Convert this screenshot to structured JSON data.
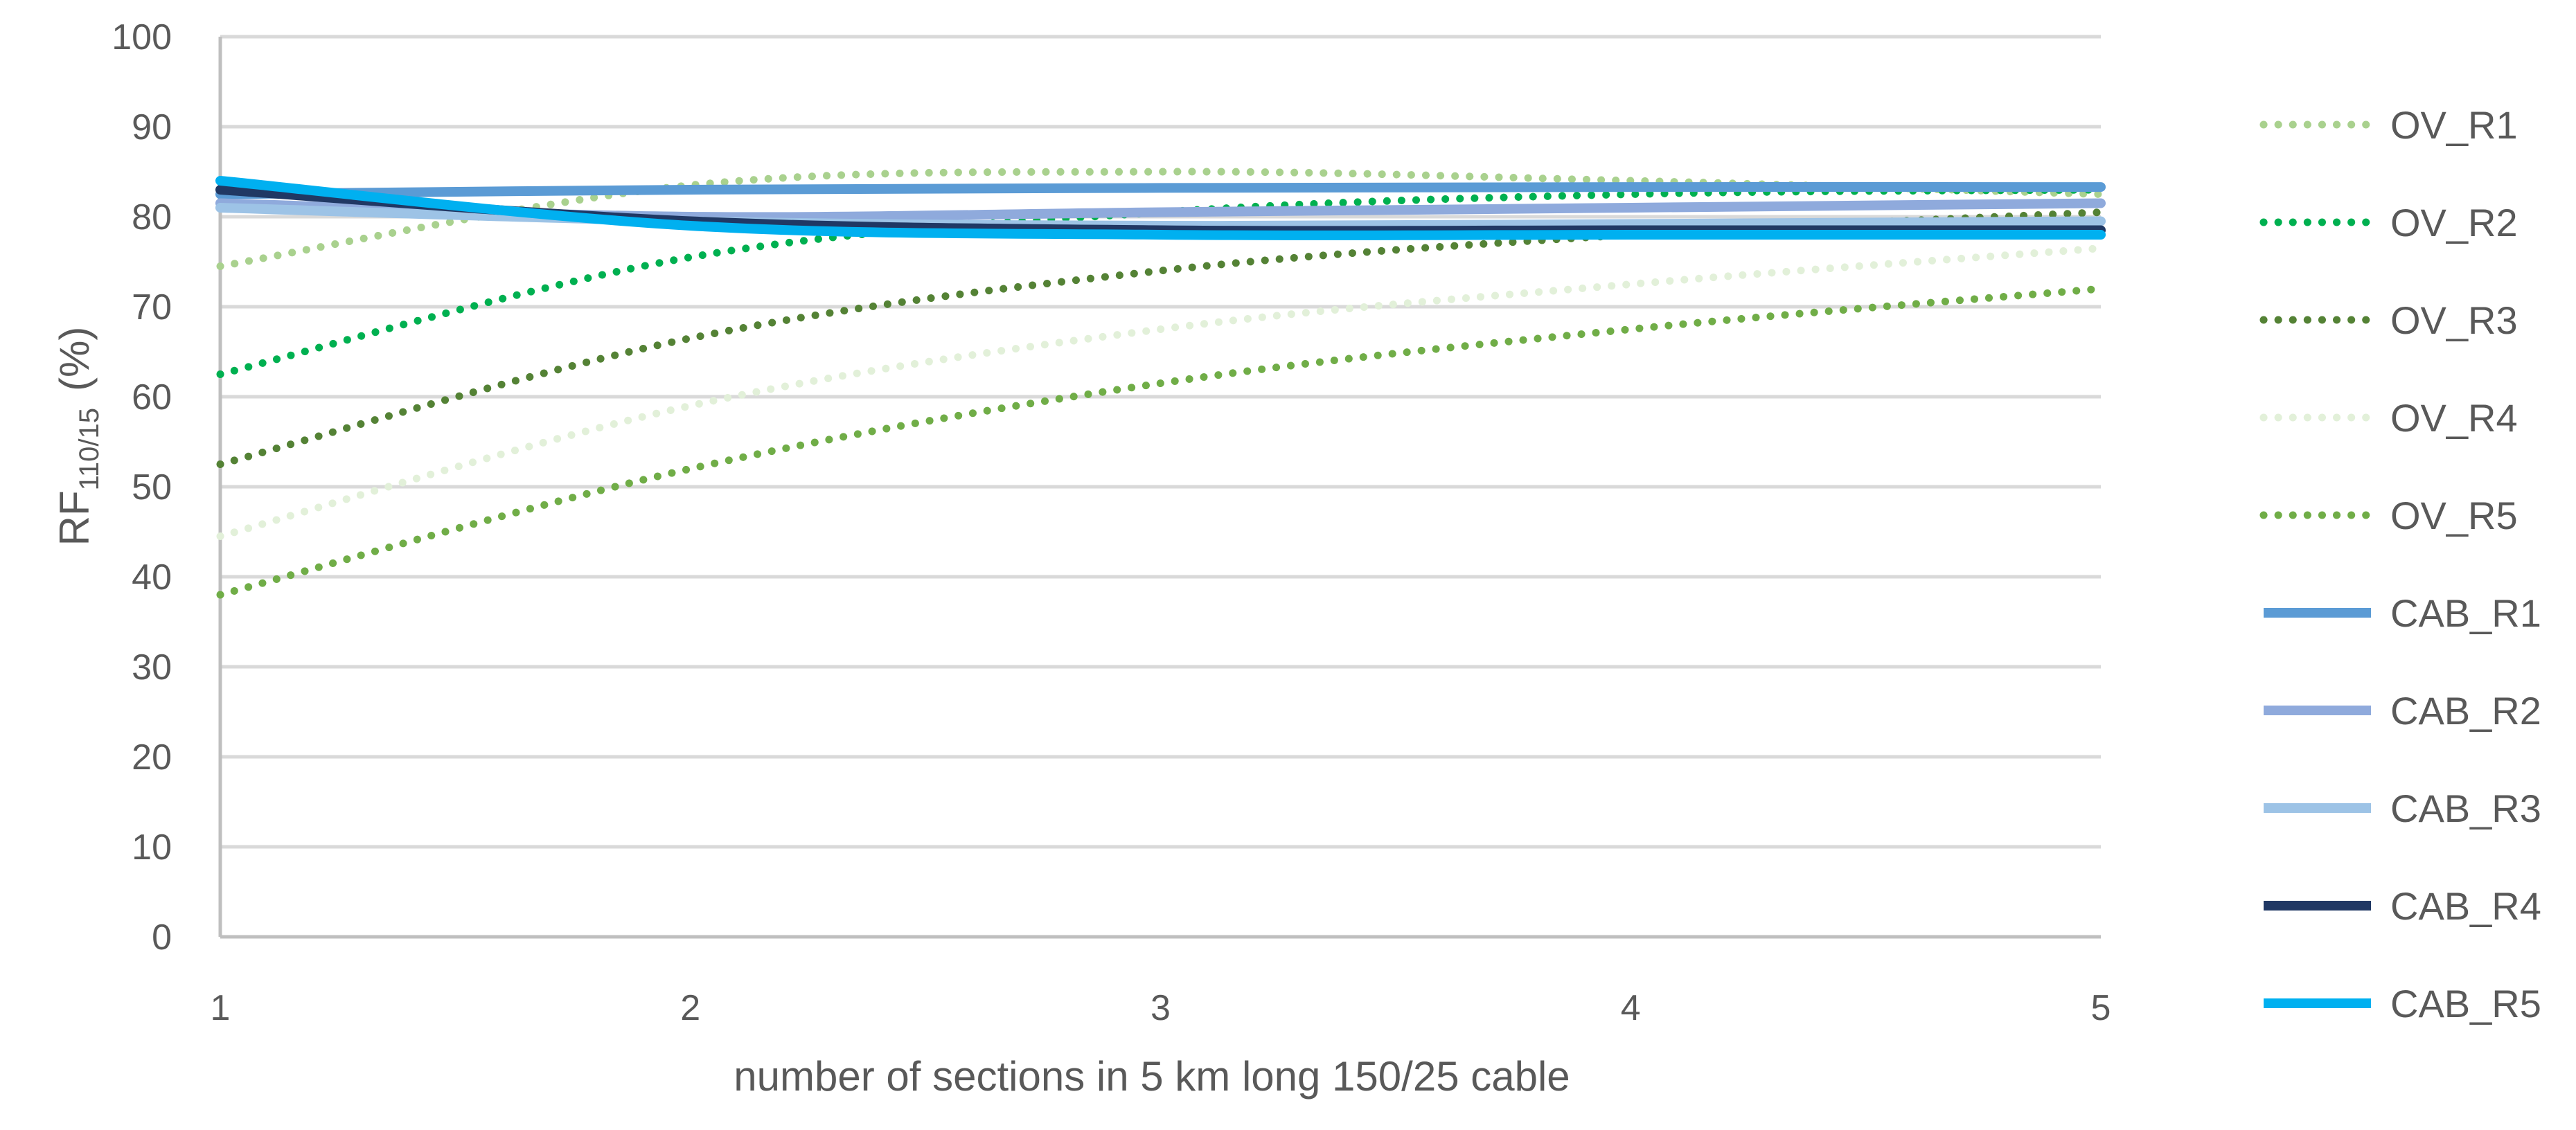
{
  "chart_data": {
    "type": "line",
    "title": "",
    "xlabel": "number of sections in 5 km long 150/25 cable",
    "ylabel": {
      "main": "RF",
      "subscript": "110/15",
      "unit": "(%)"
    },
    "x": [
      1,
      2,
      3,
      4,
      5
    ],
    "xlim": [
      1,
      5
    ],
    "ylim": [
      0,
      100
    ],
    "yticks": [
      0,
      10,
      20,
      30,
      40,
      50,
      60,
      70,
      80,
      90,
      100
    ],
    "xticks": [
      1,
      2,
      3,
      4,
      5
    ],
    "grid": true,
    "legend_position": "right",
    "series": [
      {
        "name": "OV_R1",
        "style": "dotted",
        "color": "#a9d18e",
        "values": [
          74.5,
          83.5,
          85.0,
          84.0,
          82.5
        ]
      },
      {
        "name": "OV_R2",
        "style": "dotted",
        "color": "#00b050",
        "values": [
          62.5,
          75.5,
          80.5,
          82.5,
          83.0
        ]
      },
      {
        "name": "OV_R3",
        "style": "dotted",
        "color": "#548235",
        "values": [
          52.5,
          66.5,
          74.0,
          78.0,
          80.5
        ]
      },
      {
        "name": "OV_R4",
        "style": "dotted",
        "color": "#e2f0d9",
        "values": [
          44.5,
          59.0,
          67.5,
          72.5,
          76.5
        ]
      },
      {
        "name": "OV_R5",
        "style": "dotted",
        "color": "#70ad47",
        "values": [
          38.0,
          52.0,
          61.5,
          67.5,
          72.0
        ]
      },
      {
        "name": "CAB_R1",
        "style": "solid",
        "color": "#5b9bd5",
        "values": [
          82.5,
          83.0,
          83.2,
          83.3,
          83.3
        ]
      },
      {
        "name": "CAB_R2",
        "style": "solid",
        "color": "#8faadc",
        "values": [
          81.5,
          80.0,
          80.5,
          81.0,
          81.5
        ]
      },
      {
        "name": "CAB_R3",
        "style": "solid",
        "color": "#9dc3e6",
        "values": [
          81.0,
          79.5,
          79.0,
          79.2,
          79.5
        ]
      },
      {
        "name": "CAB_R4",
        "style": "solid",
        "color": "#203864",
        "values": [
          83.0,
          79.5,
          78.5,
          78.5,
          78.5
        ]
      },
      {
        "name": "CAB_R5",
        "style": "solid",
        "color": "#00b0f0",
        "values": [
          84.0,
          79.0,
          78.0,
          78.0,
          78.0
        ]
      }
    ]
  }
}
